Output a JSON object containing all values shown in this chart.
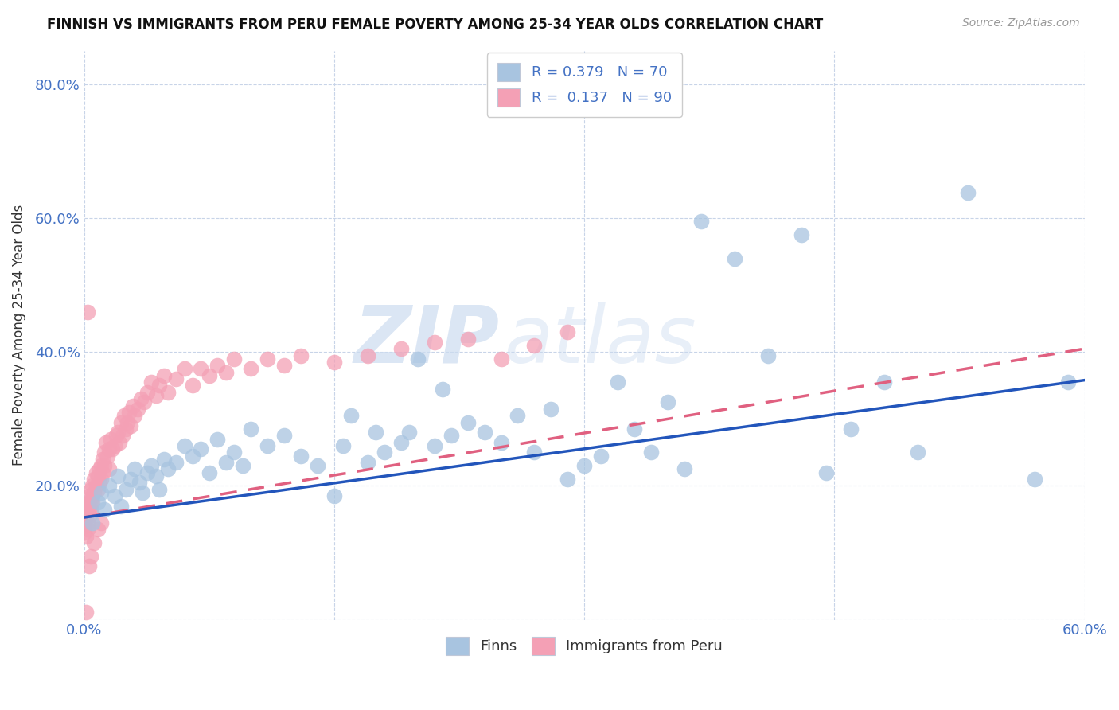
{
  "title": "FINNISH VS IMMIGRANTS FROM PERU FEMALE POVERTY AMONG 25-34 YEAR OLDS CORRELATION CHART",
  "source": "Source: ZipAtlas.com",
  "ylabel": "Female Poverty Among 25-34 Year Olds",
  "xlim": [
    0.0,
    0.6
  ],
  "ylim": [
    0.0,
    0.85
  ],
  "finns_color": "#a8c4e0",
  "peru_color": "#f4a0b5",
  "finns_line_color": "#2255bb",
  "peru_line_color": "#e06080",
  "axis_tick_color": "#4472c4",
  "tick_fontsize": 13,
  "ylabel_fontsize": 12,
  "legend_fontsize": 13,
  "title_fontsize": 12,
  "finns_N": 70,
  "peru_N": 90,
  "finns_R": 0.379,
  "peru_R": 0.137,
  "finns_x": [
    0.005,
    0.008,
    0.01,
    0.012,
    0.015,
    0.018,
    0.02,
    0.022,
    0.025,
    0.028,
    0.03,
    0.033,
    0.035,
    0.038,
    0.04,
    0.043,
    0.045,
    0.048,
    0.05,
    0.055,
    0.06,
    0.065,
    0.07,
    0.075,
    0.08,
    0.085,
    0.09,
    0.095,
    0.1,
    0.11,
    0.12,
    0.13,
    0.14,
    0.15,
    0.155,
    0.16,
    0.17,
    0.175,
    0.18,
    0.19,
    0.195,
    0.2,
    0.21,
    0.215,
    0.22,
    0.23,
    0.24,
    0.25,
    0.26,
    0.27,
    0.28,
    0.29,
    0.3,
    0.31,
    0.32,
    0.33,
    0.34,
    0.35,
    0.36,
    0.37,
    0.39,
    0.41,
    0.43,
    0.445,
    0.46,
    0.48,
    0.5,
    0.53,
    0.57,
    0.59
  ],
  "finns_y": [
    0.145,
    0.175,
    0.19,
    0.165,
    0.2,
    0.185,
    0.215,
    0.17,
    0.195,
    0.21,
    0.225,
    0.205,
    0.19,
    0.22,
    0.23,
    0.215,
    0.195,
    0.24,
    0.225,
    0.235,
    0.26,
    0.245,
    0.255,
    0.22,
    0.27,
    0.235,
    0.25,
    0.23,
    0.285,
    0.26,
    0.275,
    0.245,
    0.23,
    0.185,
    0.26,
    0.305,
    0.235,
    0.28,
    0.25,
    0.265,
    0.28,
    0.39,
    0.26,
    0.345,
    0.275,
    0.295,
    0.28,
    0.265,
    0.305,
    0.25,
    0.315,
    0.21,
    0.23,
    0.245,
    0.355,
    0.285,
    0.25,
    0.325,
    0.225,
    0.595,
    0.54,
    0.395,
    0.575,
    0.22,
    0.285,
    0.355,
    0.25,
    0.638,
    0.21,
    0.355
  ],
  "peru_x": [
    0.0,
    0.0,
    0.0,
    0.001,
    0.001,
    0.001,
    0.001,
    0.002,
    0.002,
    0.002,
    0.002,
    0.003,
    0.003,
    0.003,
    0.003,
    0.004,
    0.004,
    0.004,
    0.005,
    0.005,
    0.005,
    0.006,
    0.006,
    0.007,
    0.007,
    0.008,
    0.008,
    0.009,
    0.009,
    0.01,
    0.01,
    0.011,
    0.011,
    0.012,
    0.012,
    0.013,
    0.014,
    0.015,
    0.015,
    0.016,
    0.017,
    0.018,
    0.019,
    0.02,
    0.021,
    0.022,
    0.023,
    0.024,
    0.025,
    0.026,
    0.027,
    0.028,
    0.029,
    0.03,
    0.032,
    0.034,
    0.036,
    0.038,
    0.04,
    0.043,
    0.045,
    0.048,
    0.05,
    0.055,
    0.06,
    0.065,
    0.07,
    0.075,
    0.08,
    0.085,
    0.09,
    0.1,
    0.11,
    0.12,
    0.13,
    0.15,
    0.17,
    0.19,
    0.21,
    0.23,
    0.25,
    0.27,
    0.29,
    0.01,
    0.008,
    0.006,
    0.004,
    0.003,
    0.002,
    0.001
  ],
  "peru_y": [
    0.13,
    0.14,
    0.145,
    0.125,
    0.15,
    0.16,
    0.155,
    0.135,
    0.16,
    0.17,
    0.145,
    0.165,
    0.175,
    0.155,
    0.185,
    0.175,
    0.195,
    0.165,
    0.185,
    0.2,
    0.175,
    0.21,
    0.19,
    0.22,
    0.2,
    0.215,
    0.195,
    0.225,
    0.205,
    0.23,
    0.21,
    0.24,
    0.22,
    0.25,
    0.23,
    0.265,
    0.245,
    0.255,
    0.225,
    0.27,
    0.255,
    0.26,
    0.275,
    0.28,
    0.265,
    0.295,
    0.275,
    0.305,
    0.285,
    0.295,
    0.31,
    0.29,
    0.32,
    0.305,
    0.315,
    0.33,
    0.325,
    0.34,
    0.355,
    0.335,
    0.35,
    0.365,
    0.34,
    0.36,
    0.375,
    0.35,
    0.375,
    0.365,
    0.38,
    0.37,
    0.39,
    0.375,
    0.39,
    0.38,
    0.395,
    0.385,
    0.395,
    0.405,
    0.415,
    0.42,
    0.39,
    0.41,
    0.43,
    0.145,
    0.135,
    0.115,
    0.095,
    0.08,
    0.46,
    0.011
  ],
  "finns_line_x": [
    0.0,
    0.6
  ],
  "finns_line_y": [
    0.153,
    0.358
  ],
  "peru_line_x": [
    0.0,
    0.6
  ],
  "peru_line_y": [
    0.153,
    0.405
  ]
}
